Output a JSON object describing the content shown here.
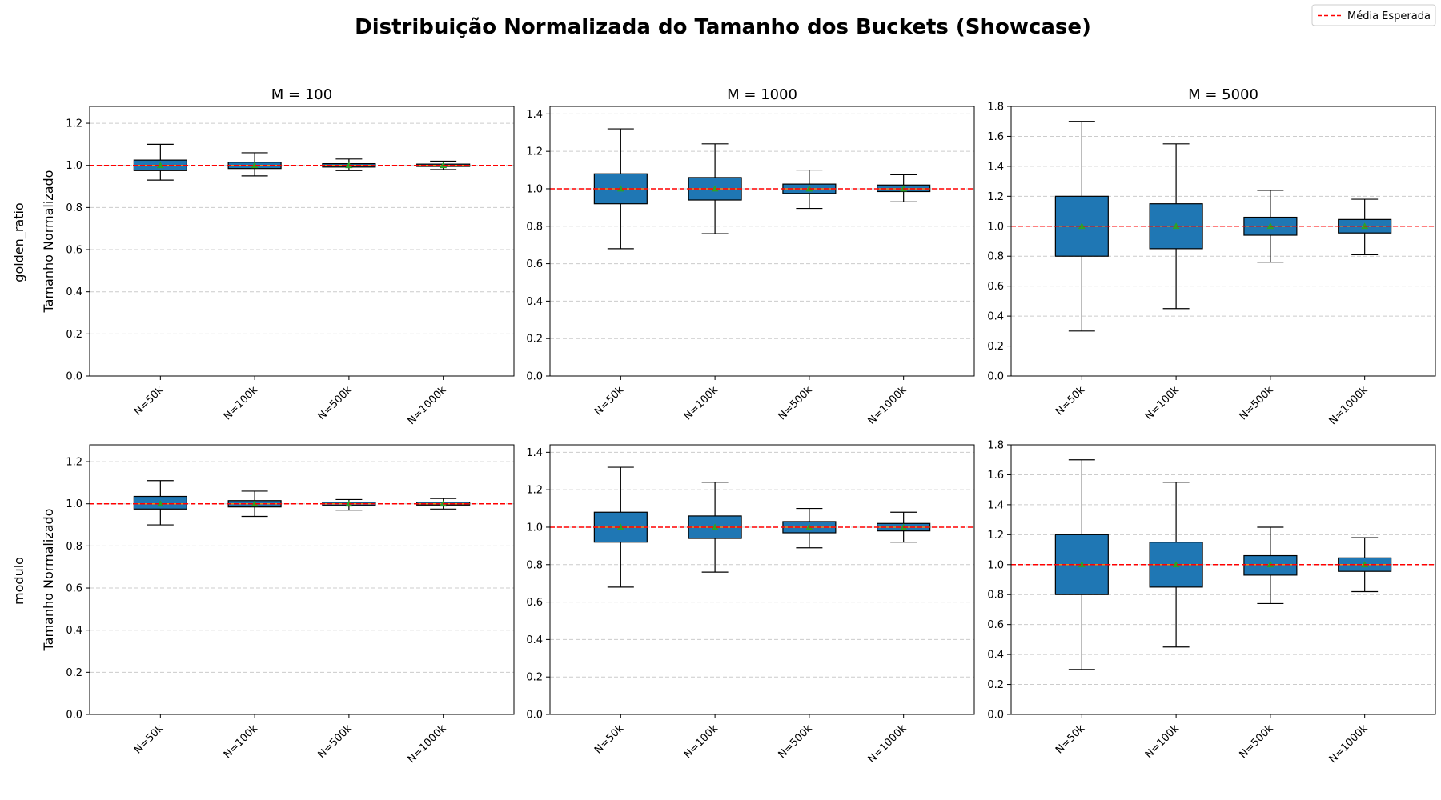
{
  "chart_data": {
    "type": "boxplot",
    "title": "Distribuição Normalizada do Tamanho dos Buckets (Showcase)",
    "legend": {
      "label": "Média Esperada",
      "placement": "top-right"
    },
    "expected_mean": 1.0,
    "ylabel": "Tamanho Normalizado",
    "rows": [
      "golden_ratio",
      "modulo"
    ],
    "columns": [
      "M = 100",
      "M = 1000",
      "M = 5000"
    ],
    "categories": [
      "N=50k",
      "N=100k",
      "N=500k",
      "N=1000k"
    ],
    "grid": "y, dashed",
    "colors": {
      "box": "#1f77b4",
      "median": "#ff7f0e",
      "mean_marker": "#2ca02c",
      "expected_line": "#ff0000",
      "grid": "#cccccc"
    },
    "panels": [
      {
        "row": "golden_ratio",
        "column": "M = 100",
        "ylim": [
          0,
          1.28
        ],
        "yticks": [
          "0.0",
          "0.2",
          "0.4",
          "0.6",
          "0.8",
          "1.0",
          "1.2"
        ],
        "boxes": [
          {
            "category": "N=50k",
            "whislo": 0.93,
            "q1": 0.975,
            "med": 1.0,
            "q3": 1.025,
            "whishi": 1.1,
            "mean": 1.0
          },
          {
            "category": "N=100k",
            "whislo": 0.95,
            "q1": 0.985,
            "med": 1.0,
            "q3": 1.015,
            "whishi": 1.06,
            "mean": 1.0
          },
          {
            "category": "N=500k",
            "whislo": 0.975,
            "q1": 0.992,
            "med": 1.0,
            "q3": 1.008,
            "whishi": 1.03,
            "mean": 1.0
          },
          {
            "category": "N=1000k",
            "whislo": 0.98,
            "q1": 0.995,
            "med": 1.0,
            "q3": 1.006,
            "whishi": 1.02,
            "mean": 1.0
          }
        ]
      },
      {
        "row": "golden_ratio",
        "column": "M = 1000",
        "ylim": [
          0,
          1.44
        ],
        "yticks": [
          "0.0",
          "0.2",
          "0.4",
          "0.6",
          "0.8",
          "1.0",
          "1.2",
          "1.4"
        ],
        "boxes": [
          {
            "category": "N=50k",
            "whislo": 0.68,
            "q1": 0.92,
            "med": 1.0,
            "q3": 1.08,
            "whishi": 1.32,
            "mean": 1.0
          },
          {
            "category": "N=100k",
            "whislo": 0.76,
            "q1": 0.94,
            "med": 1.0,
            "q3": 1.06,
            "whishi": 1.24,
            "mean": 1.0
          },
          {
            "category": "N=500k",
            "whislo": 0.895,
            "q1": 0.975,
            "med": 1.0,
            "q3": 1.025,
            "whishi": 1.1,
            "mean": 1.0
          },
          {
            "category": "N=1000k",
            "whislo": 0.93,
            "q1": 0.985,
            "med": 1.0,
            "q3": 1.02,
            "whishi": 1.075,
            "mean": 1.0
          }
        ]
      },
      {
        "row": "golden_ratio",
        "column": "M = 5000",
        "ylim": [
          0,
          1.8
        ],
        "yticks": [
          "0.0",
          "0.2",
          "0.4",
          "0.6",
          "0.8",
          "1.0",
          "1.2",
          "1.4",
          "1.6",
          "1.8"
        ],
        "boxes": [
          {
            "category": "N=50k",
            "whislo": 0.3,
            "q1": 0.8,
            "med": 1.0,
            "q3": 1.2,
            "whishi": 1.7,
            "mean": 1.0
          },
          {
            "category": "N=100k",
            "whislo": 0.45,
            "q1": 0.85,
            "med": 1.0,
            "q3": 1.15,
            "whishi": 1.55,
            "mean": 1.0
          },
          {
            "category": "N=500k",
            "whislo": 0.76,
            "q1": 0.94,
            "med": 1.0,
            "q3": 1.06,
            "whishi": 1.24,
            "mean": 1.0
          },
          {
            "category": "N=1000k",
            "whislo": 0.81,
            "q1": 0.955,
            "med": 1.0,
            "q3": 1.045,
            "whishi": 1.18,
            "mean": 1.0
          }
        ]
      },
      {
        "row": "modulo",
        "column": "M = 100",
        "ylim": [
          0,
          1.28
        ],
        "yticks": [
          "0.0",
          "0.2",
          "0.4",
          "0.6",
          "0.8",
          "1.0",
          "1.2"
        ],
        "boxes": [
          {
            "category": "N=50k",
            "whislo": 0.9,
            "q1": 0.975,
            "med": 1.0,
            "q3": 1.035,
            "whishi": 1.11,
            "mean": 1.0
          },
          {
            "category": "N=100k",
            "whislo": 0.94,
            "q1": 0.985,
            "med": 1.0,
            "q3": 1.015,
            "whishi": 1.06,
            "mean": 1.0
          },
          {
            "category": "N=500k",
            "whislo": 0.97,
            "q1": 0.992,
            "med": 1.0,
            "q3": 1.008,
            "whishi": 1.02,
            "mean": 1.0
          },
          {
            "category": "N=1000k",
            "whislo": 0.975,
            "q1": 0.994,
            "med": 1.0,
            "q3": 1.008,
            "whishi": 1.025,
            "mean": 1.0
          }
        ]
      },
      {
        "row": "modulo",
        "column": "M = 1000",
        "ylim": [
          0,
          1.44
        ],
        "yticks": [
          "0.0",
          "0.2",
          "0.4",
          "0.6",
          "0.8",
          "1.0",
          "1.2",
          "1.4"
        ],
        "boxes": [
          {
            "category": "N=50k",
            "whislo": 0.68,
            "q1": 0.92,
            "med": 1.0,
            "q3": 1.08,
            "whishi": 1.32,
            "mean": 1.0
          },
          {
            "category": "N=100k",
            "whislo": 0.76,
            "q1": 0.94,
            "med": 1.0,
            "q3": 1.06,
            "whishi": 1.24,
            "mean": 1.0
          },
          {
            "category": "N=500k",
            "whislo": 0.89,
            "q1": 0.97,
            "med": 1.0,
            "q3": 1.03,
            "whishi": 1.1,
            "mean": 1.0
          },
          {
            "category": "N=1000k",
            "whislo": 0.92,
            "q1": 0.98,
            "med": 1.0,
            "q3": 1.02,
            "whishi": 1.08,
            "mean": 1.0
          }
        ]
      },
      {
        "row": "modulo",
        "column": "M = 5000",
        "ylim": [
          0,
          1.8
        ],
        "yticks": [
          "0.0",
          "0.2",
          "0.4",
          "0.6",
          "0.8",
          "1.0",
          "1.2",
          "1.4",
          "1.6",
          "1.8"
        ],
        "boxes": [
          {
            "category": "N=50k",
            "whislo": 0.3,
            "q1": 0.8,
            "med": 1.0,
            "q3": 1.2,
            "whishi": 1.7,
            "mean": 1.0
          },
          {
            "category": "N=100k",
            "whislo": 0.45,
            "q1": 0.85,
            "med": 1.0,
            "q3": 1.15,
            "whishi": 1.55,
            "mean": 1.0
          },
          {
            "category": "N=500k",
            "whislo": 0.74,
            "q1": 0.93,
            "med": 1.0,
            "q3": 1.06,
            "whishi": 1.25,
            "mean": 1.0
          },
          {
            "category": "N=1000k",
            "whislo": 0.82,
            "q1": 0.955,
            "med": 1.0,
            "q3": 1.045,
            "whishi": 1.18,
            "mean": 1.0
          }
        ]
      }
    ]
  }
}
